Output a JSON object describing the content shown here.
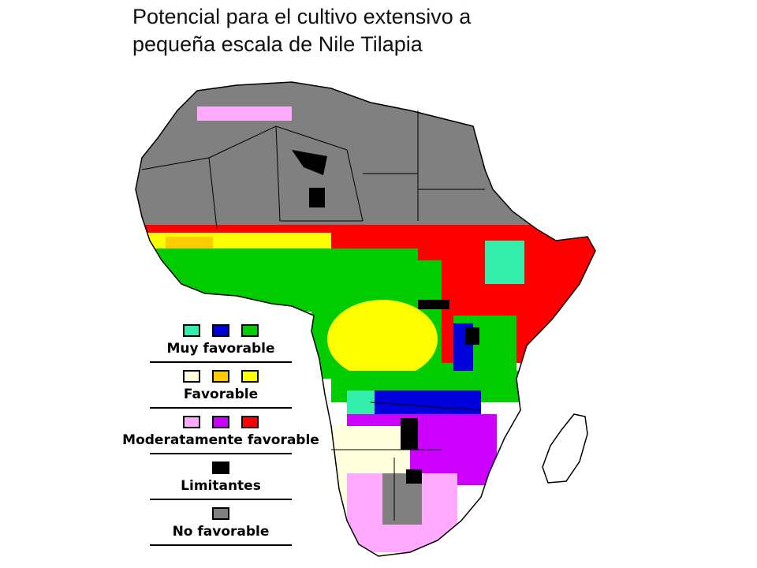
{
  "title": {
    "line1": "Potencial para el cultivo extensivo a",
    "line2": "pequeña escala de Nile Tilapia"
  },
  "colors": {
    "no_favorable": "#808080",
    "red": "#ff0000",
    "yellow": "#ffff00",
    "orange_yellow": "#ffcc00",
    "green": "#00cc00",
    "teal": "#33eeaa",
    "blue": "#0000dd",
    "pink": "#ffaaff",
    "purple": "#cc00ff",
    "cream": "#ffffdd",
    "black": "#000000"
  },
  "legend": [
    {
      "label": "Muy favorable",
      "swatches": [
        "#33eeaa",
        "#0000dd",
        "#00cc00"
      ]
    },
    {
      "label": "Favorable",
      "swatches": [
        "#ffffdd",
        "#ffcc00",
        "#ffff00"
      ]
    },
    {
      "label": "Moderatamente favorable",
      "swatches": [
        "#ffaaff",
        "#cc00ff",
        "#ff0000"
      ]
    },
    {
      "label": "Limitantes",
      "swatches": [
        "#000000"
      ]
    },
    {
      "label": "No favorable",
      "swatches": [
        "#808080"
      ]
    }
  ]
}
